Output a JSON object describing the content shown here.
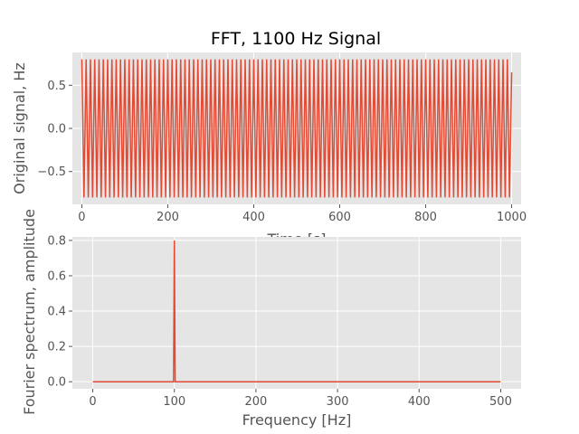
{
  "chart_data": [
    {
      "type": "line",
      "title": "FFT, 1100 Hz Signal",
      "xlabel": "Time [s]",
      "ylabel": "Original signal, Hz",
      "xlim": [
        -22,
        1022
      ],
      "ylim": [
        -0.88,
        0.88
      ],
      "xticks": [
        "0",
        "200",
        "400",
        "600",
        "800",
        "1000"
      ],
      "xtick_values": [
        0,
        200,
        400,
        600,
        800,
        1000
      ],
      "yticks": [
        "0.5",
        "0.0",
        "−0.5"
      ],
      "ytick_values": [
        0.5,
        0.0,
        -0.5
      ],
      "grid": true,
      "signal": {
        "amplitude": 0.8,
        "cycles": 100,
        "x_start": 0,
        "x_end": 1000,
        "end_value": 0.65
      },
      "color": "#E24A33"
    },
    {
      "type": "line",
      "title": "",
      "xlabel": "Frequency [Hz]",
      "ylabel": "Fourier spectrum, amplitude",
      "xlim": [
        -25,
        525
      ],
      "ylim": [
        -0.04,
        0.82
      ],
      "xticks": [
        "0",
        "100",
        "200",
        "300",
        "400",
        "500"
      ],
      "xtick_values": [
        0,
        100,
        200,
        300,
        400,
        500
      ],
      "yticks": [
        "0.8",
        "0.6",
        "0.4",
        "0.2",
        "0.0"
      ],
      "ytick_values": [
        0.8,
        0.6,
        0.4,
        0.2,
        0.0
      ],
      "grid": true,
      "x": [
        0,
        99,
        100,
        101,
        500
      ],
      "y": [
        0.0,
        0.0,
        0.8,
        0.0,
        0.0
      ],
      "color": "#E24A33"
    }
  ]
}
